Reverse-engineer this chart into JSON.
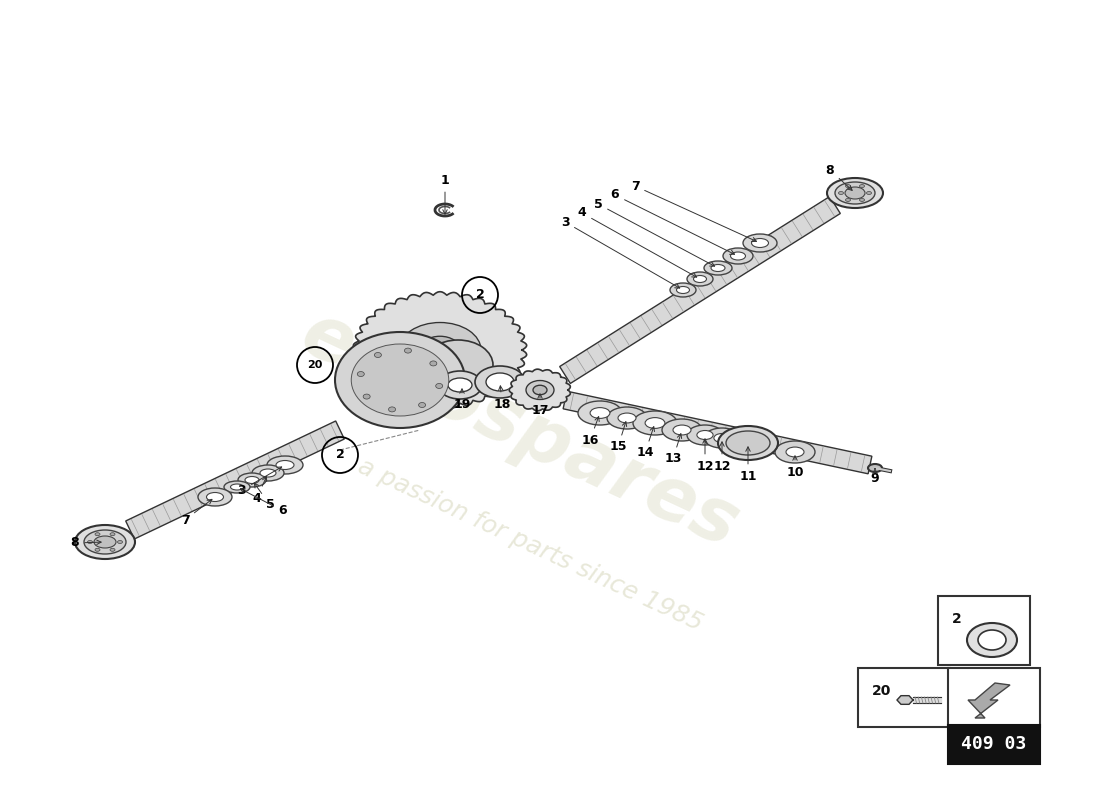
{
  "part_number": "409 03",
  "background_color": "#ffffff",
  "watermark_text1": "eurospares",
  "watermark_text2": "a passion for parts since 1985",
  "watermark_color_1": "#ccccaa",
  "watermark_color_2": "#ccccaa",
  "fig_width": 11.0,
  "fig_height": 8.0,
  "line_color": "#333333",
  "fill_light": "#e8e8e8",
  "fill_med": "#cccccc",
  "fill_dark": "#aaaaaa",
  "note_color": "#000000",
  "box_bg": "#ffffff",
  "pn_bg": "#1a1a1a",
  "pn_fg": "#ffffff"
}
